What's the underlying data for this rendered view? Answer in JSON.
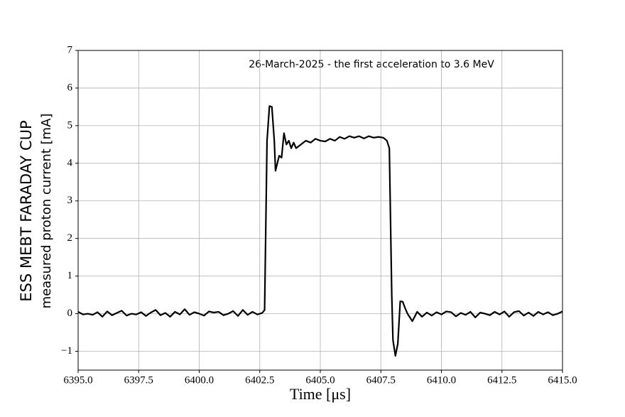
{
  "chart_data": {
    "type": "line",
    "annotation": "26-March-2025 - the first acceleration to 3.6 MeV",
    "xlabel": "Time [μs]",
    "ylabel": [
      "ESS MEBT FARADAY CUP",
      "measured proton current [mA]"
    ],
    "color": "#000000",
    "grid": true,
    "xlim": [
      6395,
      6415
    ],
    "ylim": [
      -1.5,
      7
    ],
    "xticks": [
      {
        "value": 6395,
        "label": "6395.0"
      },
      6397.5,
      {
        "value": 6400,
        "label": "6400.0"
      },
      6402.5,
      {
        "value": 6405,
        "label": "6405.0"
      },
      6407.5,
      {
        "value": 6410,
        "label": "6410.0"
      },
      6412.5,
      {
        "value": 6415,
        "label": "6415.0"
      }
    ],
    "yticks": [
      {
        "value": -1,
        "label": "−1"
      },
      0,
      1,
      2,
      3,
      4,
      5,
      6,
      7
    ],
    "x": [
      6395,
      6395.2,
      6395.4,
      6395.6,
      6395.8,
      6396,
      6396.2,
      6396.4,
      6396.6,
      6396.8,
      6397,
      6397.2,
      6397.4,
      6397.6,
      6397.8,
      6398,
      6398.2,
      6398.4,
      6398.6,
      6398.8,
      6399,
      6399.2,
      6399.4,
      6399.6,
      6399.8,
      6400,
      6400.2,
      6400.4,
      6400.6,
      6400.8,
      6401,
      6401.2,
      6401.4,
      6401.6,
      6401.8,
      6402,
      6402.2,
      6402.4,
      6402.6,
      6402.7,
      6402.8,
      6402.9,
      6403,
      6403.1,
      6403.15,
      6403.3,
      6403.4,
      6403.5,
      6403.6,
      6403.7,
      6403.8,
      6403.9,
      6404,
      6404.2,
      6404.4,
      6404.6,
      6404.8,
      6405,
      6405.2,
      6405.4,
      6405.6,
      6405.8,
      6406,
      6406.2,
      6406.4,
      6406.6,
      6406.8,
      6407,
      6407.2,
      6407.4,
      6407.6,
      6407.75,
      6407.85,
      6407.95,
      6408,
      6408.1,
      6408.2,
      6408.3,
      6408.4,
      6408.5,
      6408.6,
      6408.7,
      6408.8,
      6409,
      6409.2,
      6409.4,
      6409.6,
      6409.8,
      6410,
      6410.2,
      6410.4,
      6410.6,
      6410.8,
      6411,
      6411.2,
      6411.4,
      6411.6,
      6411.8,
      6412,
      6412.2,
      6412.4,
      6412.6,
      6412.8,
      6413,
      6413.2,
      6413.4,
      6413.6,
      6413.8,
      6414,
      6414.2,
      6414.4,
      6414.6,
      6414.8,
      6415
    ],
    "values": [
      0.05,
      -0.02,
      0.0,
      -0.03,
      0.04,
      -0.08,
      0.06,
      -0.04,
      0.02,
      0.08,
      -0.05,
      0.0,
      -0.02,
      0.04,
      -0.06,
      0.03,
      0.1,
      -0.04,
      0.02,
      -0.08,
      0.05,
      -0.02,
      0.12,
      -0.03,
      0.04,
      0.0,
      -0.05,
      0.06,
      0.03,
      0.05,
      -0.04,
      0.0,
      0.07,
      -0.06,
      0.1,
      -0.03,
      0.05,
      -0.02,
      0.02,
      0.1,
      4.6,
      5.52,
      5.5,
      4.6,
      3.8,
      4.2,
      4.15,
      4.8,
      4.5,
      4.6,
      4.4,
      4.55,
      4.4,
      4.5,
      4.6,
      4.55,
      4.65,
      4.6,
      4.58,
      4.65,
      4.6,
      4.7,
      4.65,
      4.72,
      4.68,
      4.72,
      4.66,
      4.72,
      4.68,
      4.7,
      4.68,
      4.6,
      4.4,
      0.5,
      -0.7,
      -1.12,
      -0.8,
      0.33,
      0.32,
      0.15,
      0.0,
      -0.1,
      -0.2,
      0.05,
      -0.08,
      0.03,
      -0.05,
      0.04,
      -0.02,
      0.06,
      0.04,
      -0.07,
      0.02,
      -0.03,
      0.05,
      -0.1,
      0.03,
      0.0,
      -0.04,
      0.05,
      -0.02,
      0.06,
      -0.08,
      0.04,
      0.07,
      -0.05,
      0.03,
      -0.06,
      0.05,
      -0.02,
      0.04,
      -0.04,
      0.0,
      0.06
    ]
  }
}
